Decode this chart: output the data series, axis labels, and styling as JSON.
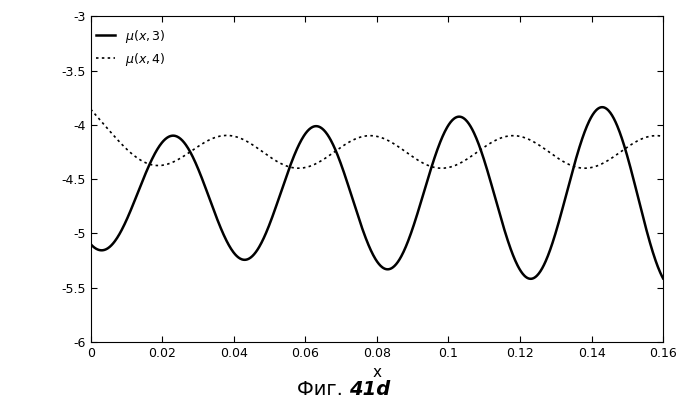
{
  "title": "",
  "xlabel": "x",
  "xlim": [
    0,
    0.16
  ],
  "ylim": [
    -6,
    -3
  ],
  "xticks": [
    0,
    0.02,
    0.04,
    0.06,
    0.08,
    0.1,
    0.12,
    0.14,
    0.16
  ],
  "yticks": [
    -6,
    -5.5,
    -5,
    -4.5,
    -4,
    -3.5,
    -3
  ],
  "figcaption_normal": "Фиг. ",
  "figcaption_italic": "41d",
  "background_color": "#ffffff",
  "line_color": "#000000",
  "n_points": 1000
}
